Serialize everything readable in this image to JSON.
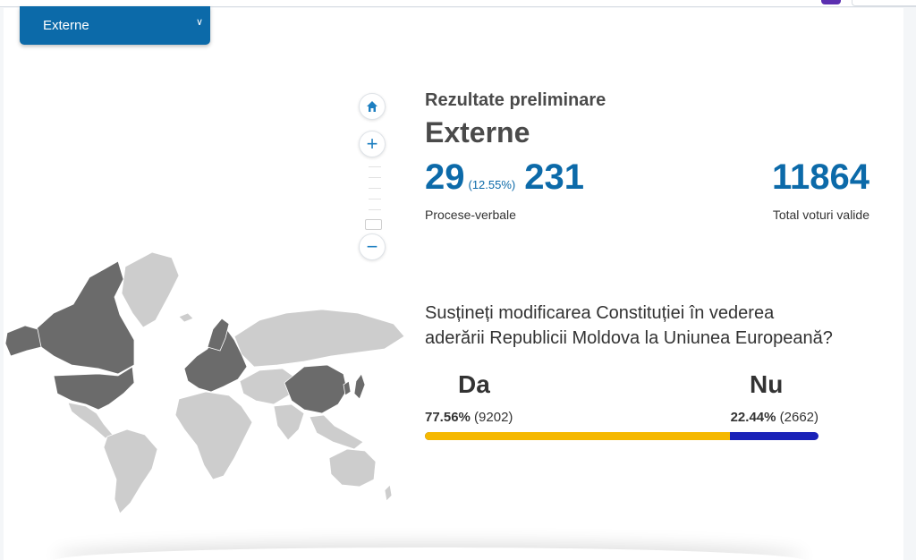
{
  "region_selector": {
    "selected": "Externe"
  },
  "results": {
    "title": "Rezultate preliminare",
    "region": "Externe",
    "processed_reports": "29",
    "processed_percent": "(12.55%)",
    "total_reports": "231",
    "reports_label": "Procese-verbale",
    "total_valid_votes": "11864",
    "total_valid_label": "Total voturi valide"
  },
  "question": {
    "line1": "Susțineți modificarea Constituției în vederea",
    "line2": "aderării Republicii Moldova la Uniunea Europeană?"
  },
  "answers": {
    "da": {
      "label": "Da",
      "percent": "77.56%",
      "votes": "(9202)",
      "fraction": 0.7756,
      "color": "#f5b800"
    },
    "nu": {
      "label": "Nu",
      "percent": "22.44%",
      "votes": "(2662)",
      "fraction": 0.2244,
      "color": "#1a22b8"
    }
  },
  "map": {
    "highlight_color": "#6b6b6b",
    "base_color": "#cdcdcd",
    "controls": [
      "home-icon",
      "plus-icon",
      "minus-icon"
    ]
  }
}
